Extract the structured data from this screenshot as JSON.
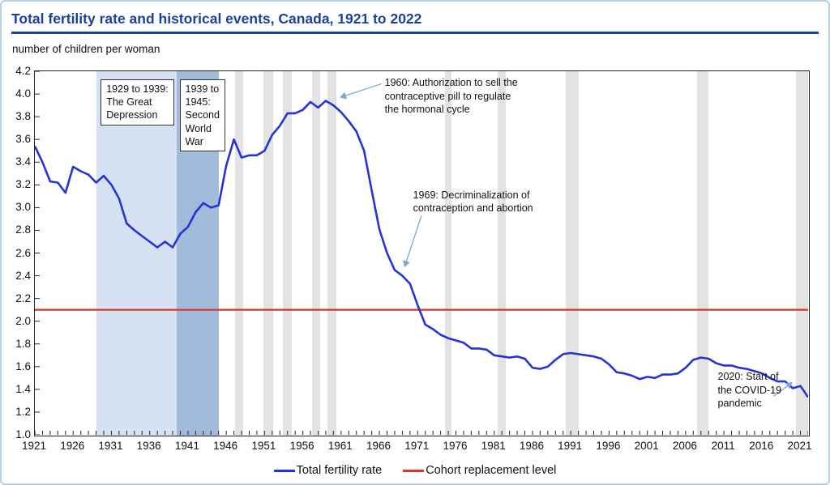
{
  "title": "Total fertility rate and historical events, Canada, 1921 to 2022",
  "subtitle": "number of children per woman",
  "colors": {
    "title_blue": "#1c419c",
    "series_blue": "#2434d6",
    "replacement_red": "#cd3a30",
    "depression_band": "#d6e2f3",
    "war_band": "#a3bbda",
    "recession_band": "#e3e3e3",
    "arrow_blue": "#7aa6d8",
    "axis_black": "#222222"
  },
  "chart_data": {
    "type": "line",
    "title": "Total fertility rate and historical events, Canada, 1921 to 2022",
    "xlabel": "",
    "ylabel": "number of children per woman",
    "x_range": [
      1921,
      2022
    ],
    "ylim": [
      1.0,
      4.2
    ],
    "y_tick_step": 0.2,
    "x_tick_labels": [
      1921,
      1926,
      1931,
      1936,
      1941,
      1946,
      1951,
      1956,
      1961,
      1966,
      1971,
      1976,
      1981,
      1986,
      1991,
      1996,
      2001,
      2006,
      2011,
      2016,
      2021
    ],
    "grid": false,
    "legend_position": "bottom-center",
    "legend": [
      {
        "label": "Total fertility rate",
        "color": "#2434d6"
      },
      {
        "label": "Cohort replacement level",
        "color": "#cd3a30"
      }
    ],
    "reference_line": {
      "name": "Cohort replacement level",
      "value": 2.1,
      "color": "#cd3a30"
    },
    "series": [
      {
        "name": "Total fertility rate",
        "color": "#2434d6",
        "points": [
          [
            1921,
            3.54
          ],
          [
            1922,
            3.4
          ],
          [
            1923,
            3.23
          ],
          [
            1924,
            3.22
          ],
          [
            1925,
            3.13
          ],
          [
            1926,
            3.36
          ],
          [
            1927,
            3.32
          ],
          [
            1928,
            3.29
          ],
          [
            1929,
            3.22
          ],
          [
            1930,
            3.28
          ],
          [
            1931,
            3.2
          ],
          [
            1932,
            3.08
          ],
          [
            1933,
            2.86
          ],
          [
            1934,
            2.8
          ],
          [
            1935,
            2.75
          ],
          [
            1936,
            2.7
          ],
          [
            1937,
            2.65
          ],
          [
            1938,
            2.7
          ],
          [
            1939,
            2.65
          ],
          [
            1940,
            2.77
          ],
          [
            1941,
            2.83
          ],
          [
            1942,
            2.96
          ],
          [
            1943,
            3.04
          ],
          [
            1944,
            3.0
          ],
          [
            1945,
            3.02
          ],
          [
            1946,
            3.37
          ],
          [
            1947,
            3.6
          ],
          [
            1948,
            3.44
          ],
          [
            1949,
            3.46
          ],
          [
            1950,
            3.46
          ],
          [
            1951,
            3.5
          ],
          [
            1952,
            3.64
          ],
          [
            1953,
            3.72
          ],
          [
            1954,
            3.83
          ],
          [
            1955,
            3.83
          ],
          [
            1956,
            3.86
          ],
          [
            1957,
            3.93
          ],
          [
            1958,
            3.88
          ],
          [
            1959,
            3.94
          ],
          [
            1960,
            3.9
          ],
          [
            1961,
            3.84
          ],
          [
            1962,
            3.76
          ],
          [
            1963,
            3.67
          ],
          [
            1964,
            3.5
          ],
          [
            1965,
            3.15
          ],
          [
            1966,
            2.81
          ],
          [
            1967,
            2.6
          ],
          [
            1968,
            2.45
          ],
          [
            1969,
            2.4
          ],
          [
            1970,
            2.33
          ],
          [
            1971,
            2.14
          ],
          [
            1972,
            1.97
          ],
          [
            1973,
            1.93
          ],
          [
            1974,
            1.88
          ],
          [
            1975,
            1.85
          ],
          [
            1976,
            1.83
          ],
          [
            1977,
            1.81
          ],
          [
            1978,
            1.76
          ],
          [
            1979,
            1.76
          ],
          [
            1980,
            1.75
          ],
          [
            1981,
            1.7
          ],
          [
            1982,
            1.69
          ],
          [
            1983,
            1.68
          ],
          [
            1984,
            1.69
          ],
          [
            1985,
            1.67
          ],
          [
            1986,
            1.59
          ],
          [
            1987,
            1.58
          ],
          [
            1988,
            1.6
          ],
          [
            1989,
            1.66
          ],
          [
            1990,
            1.71
          ],
          [
            1991,
            1.72
          ],
          [
            1992,
            1.71
          ],
          [
            1993,
            1.7
          ],
          [
            1994,
            1.69
          ],
          [
            1995,
            1.67
          ],
          [
            1996,
            1.62
          ],
          [
            1997,
            1.55
          ],
          [
            1998,
            1.54
          ],
          [
            1999,
            1.52
          ],
          [
            2000,
            1.49
          ],
          [
            2001,
            1.51
          ],
          [
            2002,
            1.5
          ],
          [
            2003,
            1.53
          ],
          [
            2004,
            1.53
          ],
          [
            2005,
            1.54
          ],
          [
            2006,
            1.59
          ],
          [
            2007,
            1.66
          ],
          [
            2008,
            1.68
          ],
          [
            2009,
            1.67
          ],
          [
            2010,
            1.63
          ],
          [
            2011,
            1.61
          ],
          [
            2012,
            1.61
          ],
          [
            2013,
            1.59
          ],
          [
            2014,
            1.58
          ],
          [
            2015,
            1.56
          ],
          [
            2016,
            1.54
          ],
          [
            2017,
            1.5
          ],
          [
            2018,
            1.47
          ],
          [
            2019,
            1.47
          ],
          [
            2020,
            1.41
          ],
          [
            2021,
            1.43
          ],
          [
            2022,
            1.33
          ]
        ]
      }
    ],
    "shaded_periods": [
      {
        "name": "great-depression",
        "start": 1929,
        "end": 1939.5,
        "color": "#d6e2f3"
      },
      {
        "name": "second-world-war",
        "start": 1939.5,
        "end": 1945,
        "color": "#a3bbda"
      }
    ],
    "recession_bands": [
      [
        1947.2,
        1948.2
      ],
      [
        1950.9,
        1952.1
      ],
      [
        1953.4,
        1954.6
      ],
      [
        1957.2,
        1958.3
      ],
      [
        1959.2,
        1960.4
      ],
      [
        1974.6,
        1975.4
      ],
      [
        1981.5,
        1982.5
      ],
      [
        1990.3,
        1992.0
      ],
      [
        2007.5,
        2009.0
      ],
      [
        2020.4,
        2022.0
      ]
    ],
    "period_boxes": [
      {
        "name": "great-depression-label",
        "lines": [
          "1929 to 1939:",
          "The Great",
          "Depression"
        ],
        "pos": [
          1929.6,
          4.13
        ]
      },
      {
        "name": "second-world-war-label",
        "lines": [
          "1939 to",
          "1945:",
          "Second",
          "World",
          "War"
        ],
        "pos": [
          1939.9,
          4.13
        ]
      }
    ],
    "annotations": [
      {
        "name": "annotation-1960-pill",
        "lines": [
          "1960: Authorization to sell the",
          "contraceptive pill to regulate",
          "the hormonal cycle"
        ],
        "pos": [
          1966.7,
          4.155
        ],
        "arrow": {
          "from": [
            1966.3,
            4.09
          ],
          "to": [
            1960.9,
            3.97
          ]
        }
      },
      {
        "name": "annotation-1969-decriminalization",
        "lines": [
          "1969: Decriminalization of",
          "contraception and abortion"
        ],
        "pos": [
          1970.4,
          3.17
        ],
        "arrow": {
          "from": [
            1971.5,
            2.93
          ],
          "to": [
            1969.3,
            2.48
          ]
        }
      },
      {
        "name": "annotation-2020-covid",
        "lines": [
          "2020: Start of",
          "the COVID-19",
          "pandemic"
        ],
        "pos": [
          2010.2,
          1.57
        ],
        "arrow": {
          "from": [
            2017.5,
            1.34
          ],
          "to": [
            2019.9,
            1.46
          ]
        }
      }
    ]
  }
}
